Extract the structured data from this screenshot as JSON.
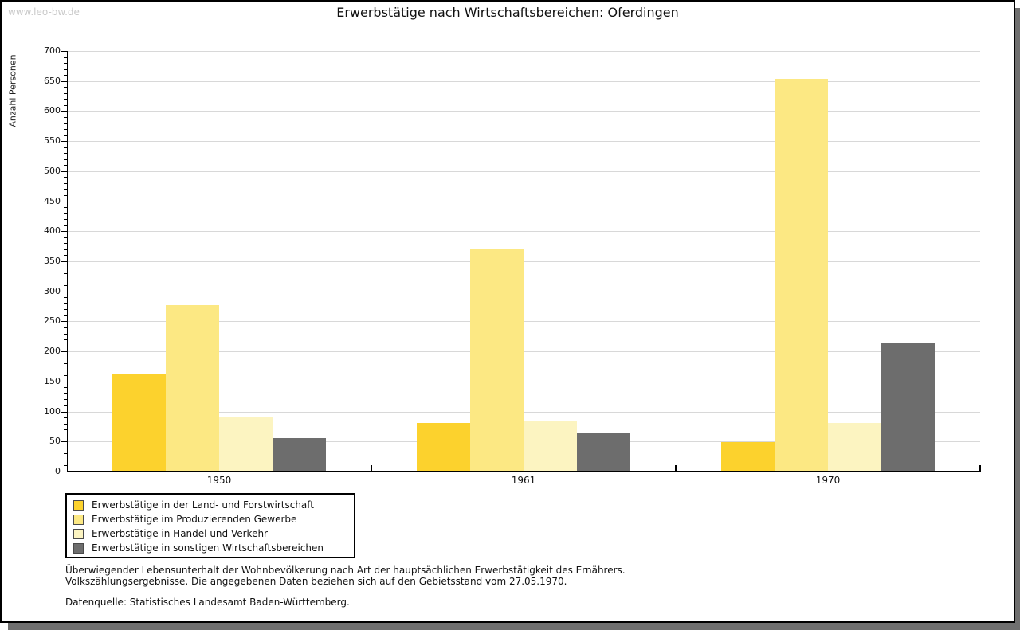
{
  "watermark": "www.leo-bw.de",
  "title": "Erwerbstätige nach Wirtschaftsbereichen: Oferdingen",
  "footer": {
    "note_line1": "Überwiegender Lebensunterhalt der Wohnbevölkerung nach Art der hauptsächlichen Erwerbstätigkeit des Ernährers.",
    "note_line2": "Volkszählungsergebnisse. Die angegebenen Daten beziehen sich auf den Gebietsstand vom 27.05.1970.",
    "source": "Datenquelle: Statistisches Landesamt Baden-Württemberg."
  },
  "chart_data": {
    "type": "bar",
    "title": "Erwerbstätige nach Wirtschaftsbereichen: Oferdingen",
    "ylabel": "Anzahl Personen",
    "xlabel": "",
    "categories": [
      "1950",
      "1961",
      "1970"
    ],
    "series": [
      {
        "name": "Erwerbstätige in der Land- und Forstwirtschaft",
        "color": "#fcd22d",
        "values": [
          162,
          79,
          48
        ]
      },
      {
        "name": "Erwerbstätige im Produzierenden Gewerbe",
        "color": "#fce883",
        "values": [
          276,
          368,
          652
        ]
      },
      {
        "name": "Erwerbstätige in Handel und Verkehr",
        "color": "#fcf4c1",
        "values": [
          90,
          84,
          80
        ]
      },
      {
        "name": "Erwerbstätige in sonstigen Wirtschaftsbereichen",
        "color": "#6d6d6d",
        "values": [
          55,
          62,
          212
        ]
      }
    ],
    "ylim": [
      0,
      700
    ],
    "ytick_step": 50,
    "minor_tick_step": 10,
    "grid": true,
    "gridline_color": "#d8d8d8",
    "legend_position": "bottom-left"
  }
}
